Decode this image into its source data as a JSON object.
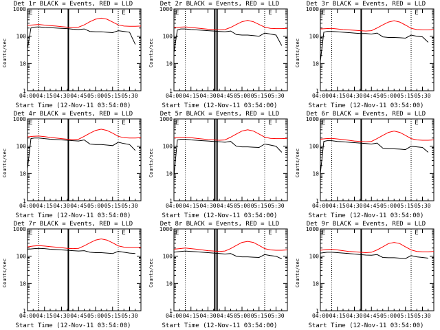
{
  "colors": {
    "events": "#000000",
    "lld": "#ff0000",
    "axes": "#000000",
    "background": "#ffffff"
  },
  "common": {
    "xlabel": "Start Time (12-Nov-11 03:54:00)",
    "ylabel": "Counts/sec",
    "x_tick_labels": [
      "04:00",
      "04:15",
      "04:30",
      "04:45",
      "05:00",
      "05:15",
      "05:30"
    ],
    "y_tick_labels": [
      "1",
      "10",
      "100",
      "1000"
    ],
    "flag_label": "E"
  },
  "chart_data": [
    {
      "type": "line",
      "title": "Det 1r BLACK = Events, RED = LLD",
      "x_unit": "minutes after 04:00",
      "xlim": [
        0,
        100
      ],
      "ylim": [
        1,
        1000
      ],
      "yscale": "log",
      "grid": false,
      "series": [
        {
          "name": "Events",
          "color": "#000000",
          "x": [
            0,
            3,
            6,
            10,
            15,
            20,
            25,
            30,
            35,
            40,
            45,
            50,
            55,
            60,
            65,
            70,
            75,
            80,
            85,
            90,
            95
          ],
          "y": [
            35,
            200,
            215,
            220,
            210,
            205,
            200,
            195,
            190,
            180,
            175,
            185,
            150,
            145,
            145,
            140,
            135,
            160,
            150,
            140,
            50
          ]
        },
        {
          "name": "LLD",
          "color": "#ff0000",
          "x": [
            0,
            5,
            10,
            15,
            20,
            25,
            30,
            35,
            40,
            45,
            50,
            55,
            60,
            65,
            70,
            75,
            80,
            85,
            90,
            95,
            100
          ],
          "y": [
            250,
            260,
            270,
            255,
            245,
            235,
            225,
            215,
            210,
            215,
            260,
            340,
            420,
            460,
            420,
            330,
            260,
            235,
            230,
            230,
            235
          ]
        }
      ],
      "markers": {
        "dotted_x": [
          10,
          80
        ],
        "solid_x": [
          36
        ],
        "flags_x": [
          0,
          82
        ]
      }
    },
    {
      "type": "line",
      "title": "Det 2r BLACK = Events, RED = LLD",
      "x_unit": "minutes after 04:00",
      "xlim": [
        0,
        100
      ],
      "ylim": [
        1,
        1000
      ],
      "yscale": "log",
      "grid": false,
      "series": [
        {
          "name": "Events",
          "color": "#000000",
          "x": [
            0,
            3,
            6,
            10,
            15,
            20,
            25,
            30,
            35,
            40,
            45,
            50,
            55,
            60,
            65,
            70,
            75,
            80,
            85,
            90,
            95
          ],
          "y": [
            25,
            170,
            185,
            185,
            175,
            170,
            165,
            160,
            155,
            150,
            145,
            155,
            115,
            110,
            110,
            105,
            100,
            130,
            120,
            110,
            45
          ]
        },
        {
          "name": "LLD",
          "color": "#ff0000",
          "x": [
            0,
            5,
            10,
            15,
            20,
            25,
            30,
            35,
            40,
            45,
            50,
            55,
            60,
            65,
            70,
            75,
            80,
            85,
            90,
            95,
            100
          ],
          "y": [
            210,
            215,
            220,
            210,
            200,
            190,
            180,
            175,
            170,
            175,
            210,
            270,
            340,
            380,
            340,
            270,
            215,
            195,
            190,
            190,
            195
          ]
        }
      ],
      "markers": {
        "dotted_x": [
          10,
          80
        ],
        "solid_x": [
          36,
          38
        ],
        "flags_x": [
          0,
          82
        ]
      }
    },
    {
      "type": "line",
      "title": "Det 3r BLACK = Events, RED = LLD",
      "x_unit": "minutes after 04:00",
      "xlim": [
        0,
        100
      ],
      "ylim": [
        1,
        1000
      ],
      "yscale": "log",
      "grid": false,
      "series": [
        {
          "name": "Events",
          "color": "#000000",
          "x": [
            0,
            3,
            6,
            10,
            15,
            20,
            25,
            30,
            35,
            40,
            45,
            50,
            55,
            60,
            65,
            70,
            75,
            80,
            85,
            90,
            95
          ],
          "y": [
            12,
            140,
            150,
            150,
            145,
            140,
            135,
            130,
            125,
            125,
            120,
            130,
            95,
            90,
            90,
            88,
            85,
            110,
            100,
            95,
            60
          ]
        },
        {
          "name": "LLD",
          "color": "#ff0000",
          "x": [
            0,
            5,
            10,
            15,
            20,
            25,
            30,
            35,
            40,
            45,
            50,
            55,
            60,
            65,
            70,
            75,
            80,
            85,
            90,
            95,
            100
          ],
          "y": [
            185,
            190,
            195,
            185,
            175,
            170,
            165,
            160,
            155,
            160,
            200,
            260,
            330,
            370,
            330,
            255,
            195,
            175,
            170,
            170,
            175
          ]
        }
      ],
      "markers": {
        "dotted_x": [
          10,
          80
        ],
        "solid_x": [
          36
        ],
        "flags_x": [
          0,
          82
        ]
      }
    },
    {
      "type": "line",
      "title": "Det 4r BLACK = Events, RED = LLD",
      "x_unit": "minutes after 04:00",
      "xlim": [
        0,
        100
      ],
      "ylim": [
        1,
        1000
      ],
      "yscale": "log",
      "grid": false,
      "series": [
        {
          "name": "Events",
          "color": "#000000",
          "x": [
            0,
            3,
            6,
            10,
            15,
            20,
            25,
            30,
            35,
            40,
            45,
            50,
            55,
            60,
            65,
            70,
            75,
            80,
            85,
            90,
            95
          ],
          "y": [
            15,
            190,
            200,
            200,
            190,
            180,
            175,
            170,
            165,
            160,
            155,
            170,
            120,
            115,
            115,
            110,
            105,
            140,
            125,
            115,
            70
          ]
        },
        {
          "name": "LLD",
          "color": "#ff0000",
          "x": [
            0,
            5,
            10,
            15,
            20,
            25,
            30,
            35,
            40,
            45,
            50,
            55,
            60,
            65,
            70,
            75,
            80,
            85,
            90,
            95,
            100
          ],
          "y": [
            220,
            230,
            235,
            225,
            210,
            200,
            190,
            180,
            175,
            180,
            230,
            300,
            380,
            420,
            380,
            300,
            230,
            205,
            200,
            200,
            205
          ]
        }
      ],
      "markers": {
        "dotted_x": [
          10,
          80
        ],
        "solid_x": [
          36
        ],
        "flags_x": [
          0,
          82
        ]
      }
    },
    {
      "type": "line",
      "title": "Det 5r BLACK = Events, RED = LLD",
      "x_unit": "minutes after 04:00",
      "xlim": [
        0,
        100
      ],
      "ylim": [
        1,
        1000
      ],
      "yscale": "log",
      "grid": false,
      "series": [
        {
          "name": "Events",
          "color": "#000000",
          "x": [
            0,
            3,
            6,
            10,
            15,
            20,
            25,
            30,
            35,
            40,
            45,
            50,
            55,
            60,
            65,
            70,
            75,
            80,
            85,
            90,
            95
          ],
          "y": [
            8,
            170,
            180,
            180,
            170,
            165,
            160,
            155,
            150,
            145,
            140,
            150,
            100,
            95,
            95,
            92,
            90,
            120,
            110,
            100,
            60
          ]
        },
        {
          "name": "LLD",
          "color": "#ff0000",
          "x": [
            0,
            5,
            10,
            15,
            20,
            25,
            30,
            35,
            40,
            45,
            50,
            55,
            60,
            65,
            70,
            75,
            80,
            85,
            90,
            95,
            100
          ],
          "y": [
            200,
            210,
            215,
            205,
            195,
            185,
            175,
            170,
            165,
            170,
            215,
            280,
            360,
            400,
            360,
            280,
            215,
            195,
            190,
            190,
            195
          ]
        }
      ],
      "markers": {
        "dotted_x": [
          10,
          80
        ],
        "solid_x": [
          36,
          38
        ],
        "flags_x": [
          0,
          82
        ]
      }
    },
    {
      "type": "line",
      "title": "Det 6r BLACK = Events, RED = LLD",
      "x_unit": "minutes after 04:00",
      "xlim": [
        0,
        100
      ],
      "ylim": [
        1,
        1000
      ],
      "yscale": "log",
      "grid": false,
      "series": [
        {
          "name": "Events",
          "color": "#000000",
          "x": [
            0,
            3,
            6,
            10,
            15,
            20,
            25,
            30,
            35,
            40,
            45,
            50,
            55,
            60,
            65,
            70,
            75,
            80,
            85,
            90,
            95
          ],
          "y": [
            10,
            150,
            160,
            160,
            150,
            145,
            140,
            135,
            130,
            125,
            120,
            130,
            85,
            80,
            80,
            78,
            75,
            100,
            95,
            90,
            60
          ]
        },
        {
          "name": "LLD",
          "color": "#ff0000",
          "x": [
            0,
            5,
            10,
            15,
            20,
            25,
            30,
            35,
            40,
            45,
            50,
            55,
            60,
            65,
            70,
            75,
            80,
            85,
            90,
            95,
            100
          ],
          "y": [
            180,
            190,
            195,
            185,
            175,
            165,
            155,
            150,
            145,
            150,
            190,
            250,
            320,
            360,
            320,
            250,
            190,
            170,
            165,
            165,
            170
          ]
        }
      ],
      "markers": {
        "dotted_x": [
          10,
          80
        ],
        "solid_x": [
          36
        ],
        "flags_x": [
          0,
          82
        ]
      }
    },
    {
      "type": "line",
      "title": "Det 7r BLACK = Events, RED = LLD",
      "x_unit": "minutes after 04:00",
      "xlim": [
        0,
        100
      ],
      "ylim": [
        1,
        1000
      ],
      "yscale": "log",
      "grid": false,
      "series": [
        {
          "name": "Events",
          "color": "#000000",
          "x": [
            0,
            3,
            6,
            10,
            15,
            20,
            25,
            30,
            35,
            40,
            45,
            50,
            55,
            60,
            65,
            70,
            75,
            80,
            85,
            90,
            95
          ],
          "y": [
            180,
            185,
            190,
            195,
            190,
            180,
            175,
            170,
            165,
            160,
            155,
            160,
            140,
            135,
            135,
            130,
            125,
            150,
            140,
            130,
            125
          ]
        },
        {
          "name": "LLD",
          "color": "#ff0000",
          "x": [
            0,
            5,
            10,
            15,
            20,
            25,
            30,
            35,
            40,
            45,
            50,
            55,
            60,
            65,
            70,
            75,
            80,
            85,
            90,
            95,
            100
          ],
          "y": [
            220,
            235,
            245,
            235,
            225,
            215,
            205,
            195,
            190,
            195,
            240,
            310,
            390,
            430,
            390,
            310,
            240,
            215,
            210,
            210,
            215
          ]
        }
      ],
      "markers": {
        "dotted_x": [
          10,
          80
        ],
        "solid_x": [
          36
        ],
        "flags_x": [
          0,
          82
        ]
      }
    },
    {
      "type": "line",
      "title": "Det 8r BLACK = Events, RED = LLD",
      "x_unit": "minutes after 04:00",
      "xlim": [
        0,
        100
      ],
      "ylim": [
        1,
        1000
      ],
      "yscale": "log",
      "grid": false,
      "series": [
        {
          "name": "Events",
          "color": "#000000",
          "x": [
            0,
            3,
            6,
            10,
            15,
            20,
            25,
            30,
            35,
            40,
            45,
            50,
            55,
            60,
            65,
            70,
            75,
            80,
            85,
            90,
            95
          ],
          "y": [
            140,
            145,
            150,
            155,
            150,
            145,
            140,
            135,
            130,
            125,
            120,
            125,
            100,
            95,
            95,
            92,
            90,
            115,
            105,
            100,
            80
          ]
        },
        {
          "name": "LLD",
          "color": "#ff0000",
          "x": [
            0,
            5,
            10,
            15,
            20,
            25,
            30,
            35,
            40,
            45,
            50,
            55,
            60,
            65,
            70,
            75,
            80,
            85,
            90,
            95,
            100
          ],
          "y": [
            180,
            190,
            200,
            190,
            180,
            170,
            160,
            155,
            150,
            155,
            190,
            250,
            320,
            350,
            320,
            250,
            190,
            170,
            165,
            165,
            170
          ]
        }
      ],
      "markers": {
        "dotted_x": [
          10,
          80
        ],
        "solid_x": [
          36,
          38
        ],
        "flags_x": [
          0,
          82
        ]
      }
    },
    {
      "type": "line",
      "title": "Det 9r BLACK = Events, RED = LLD",
      "x_unit": "minutes after 04:00",
      "xlim": [
        0,
        100
      ],
      "ylim": [
        1,
        1000
      ],
      "yscale": "log",
      "grid": false,
      "series": [
        {
          "name": "Events",
          "color": "#000000",
          "x": [
            0,
            3,
            6,
            10,
            15,
            20,
            25,
            30,
            35,
            40,
            45,
            50,
            55,
            60,
            65,
            70,
            75,
            80,
            85,
            90,
            95
          ],
          "y": [
            130,
            135,
            140,
            140,
            135,
            130,
            125,
            120,
            115,
            110,
            108,
            115,
            90,
            88,
            88,
            85,
            82,
            105,
            95,
            90,
            85
          ]
        },
        {
          "name": "LLD",
          "color": "#ff0000",
          "x": [
            0,
            5,
            10,
            15,
            20,
            25,
            30,
            35,
            40,
            45,
            50,
            55,
            60,
            65,
            70,
            75,
            80,
            85,
            90,
            95,
            100
          ],
          "y": [
            165,
            175,
            180,
            170,
            160,
            150,
            145,
            140,
            135,
            140,
            170,
            220,
            290,
            320,
            290,
            220,
            170,
            150,
            145,
            145,
            150
          ]
        }
      ],
      "markers": {
        "dotted_x": [
          10,
          80
        ],
        "solid_x": [
          36
        ],
        "flags_x": [
          0,
          82
        ]
      }
    }
  ]
}
